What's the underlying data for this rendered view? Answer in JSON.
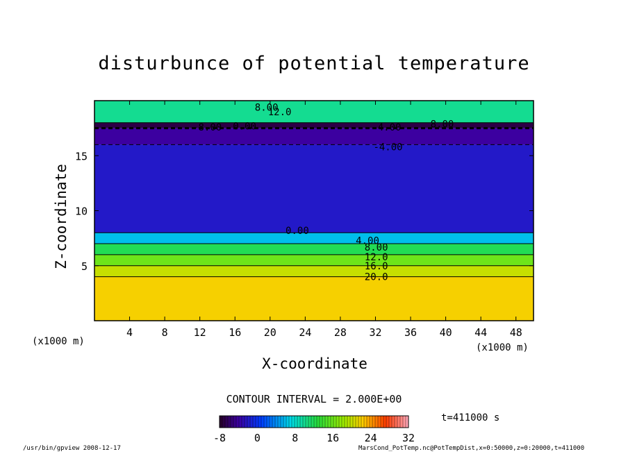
{
  "chart_data": {
    "type": "heatmap",
    "title": "disturbunce of potential temperature",
    "xlabel": "X-coordinate",
    "ylabel": "Z-coordinate",
    "x_unit": "(x1000 m)",
    "y_unit": "(x1000 m)",
    "xlim": [
      0,
      50
    ],
    "ylim": [
      0,
      20
    ],
    "x_ticks": [
      "4",
      "8",
      "12",
      "16",
      "20",
      "24",
      "28",
      "32",
      "36",
      "40",
      "44",
      "48"
    ],
    "y_ticks": [
      "5",
      "10",
      "15"
    ],
    "contour_interval": "CONTOUR INTERVAL = 2.000E+00",
    "colorbar": {
      "min": -8,
      "max": 32,
      "ticks": [
        "-8",
        "0",
        "8",
        "16",
        "24",
        "32"
      ]
    },
    "contour_labels": [
      "8.00",
      "12.0",
      "0.00",
      "4.00",
      "-4.00",
      "0.00",
      "8.00",
      "4.00",
      "8.00",
      "12.0",
      "16.0",
      "20.0",
      "-8.00"
    ],
    "layers": [
      {
        "z_bottom": 0,
        "z_top": 4,
        "value": 22
      },
      {
        "z_bottom": 4,
        "z_top": 5,
        "value": 20
      },
      {
        "z_bottom": 5,
        "z_top": 6,
        "value": 16
      },
      {
        "z_bottom": 6,
        "z_top": 7,
        "value": 12
      },
      {
        "z_bottom": 7,
        "z_top": 8,
        "value": 6
      },
      {
        "z_bottom": 8,
        "z_top": 16,
        "value": -2
      },
      {
        "z_bottom": 16,
        "z_top": 17.5,
        "value": -4
      },
      {
        "z_bottom": 17.5,
        "z_top": 18,
        "value": -7
      },
      {
        "z_bottom": 18,
        "z_top": 20,
        "value": 10
      }
    ],
    "time_label": "t=411000 s"
  },
  "footer": {
    "left": "/usr/bin/gpview   2008-12-17",
    "right": "MarsCond_PotTemp.nc@PotTempDist,x=0:50000,z=0:20000,t=411000"
  }
}
